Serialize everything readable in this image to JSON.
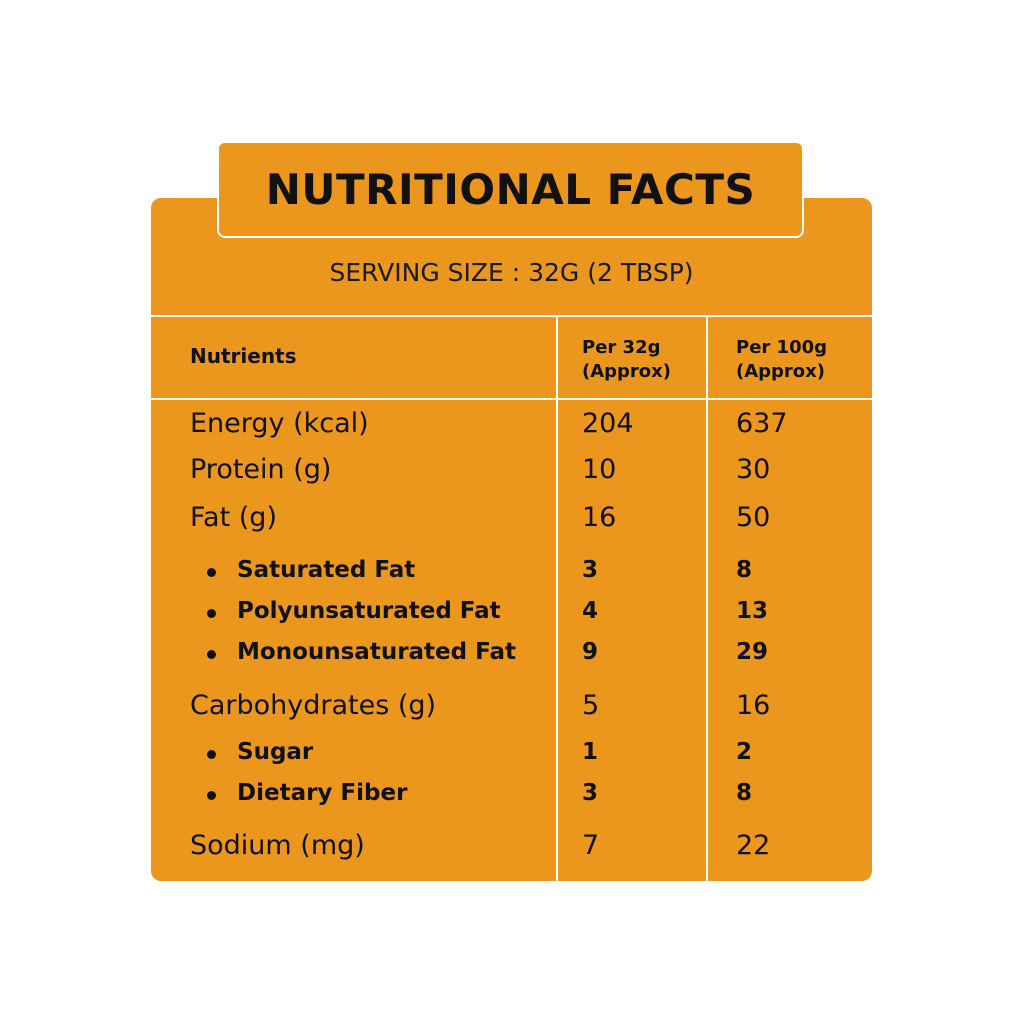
{
  "title": "NUTRITIONAL FACTS",
  "serving_size": "SERVING SIZE : 32G (2 TBSP)",
  "headers": {
    "nutrients": "Nutrients",
    "col1_line1": "Per 32g",
    "col1_line2": "(Approx)",
    "col2_line1": "Per 100g",
    "col2_line2": "(Approx)"
  },
  "rows": [
    {
      "name": "Energy (kcal)",
      "per32": "204",
      "per100": "637",
      "sub": false
    },
    {
      "name": "Protein (g)",
      "per32": "10",
      "per100": "30",
      "sub": false
    },
    {
      "name": "Fat (g)",
      "per32": "16",
      "per100": "50",
      "sub": false
    },
    {
      "name": "Saturated Fat",
      "per32": "3",
      "per100": "8",
      "sub": true
    },
    {
      "name": "Polyunsaturated Fat",
      "per32": "4",
      "per100": "13",
      "sub": true
    },
    {
      "name": "Monounsaturated Fat",
      "per32": "9",
      "per100": "29",
      "sub": true
    },
    {
      "name": "Carbohydrates (g)",
      "per32": "5",
      "per100": "16",
      "sub": false
    },
    {
      "name": "Sugar",
      "per32": "1",
      "per100": "2",
      "sub": true
    },
    {
      "name": "Dietary Fiber",
      "per32": "3",
      "per100": "8",
      "sub": true
    },
    {
      "name": "Sodium (mg)",
      "per32": "7",
      "per100": "22",
      "sub": false
    }
  ],
  "colors": {
    "panel": "#eb961d",
    "lines": "#ffffff",
    "text": "#111111"
  }
}
